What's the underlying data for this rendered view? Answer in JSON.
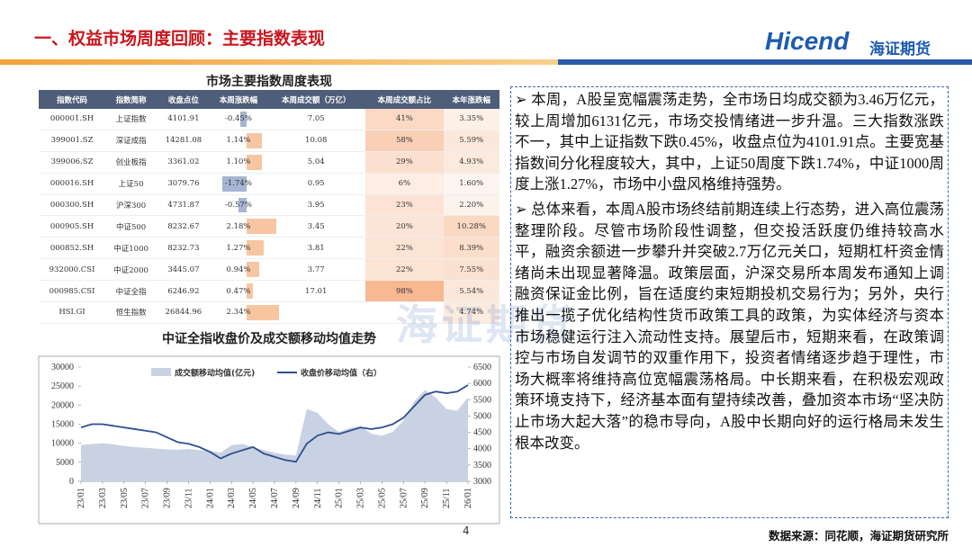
{
  "header": {
    "title": "一、权益市场周度回顾：主要指数表现",
    "logo": "Hicend",
    "logo_cn": "海证期货"
  },
  "table": {
    "title": "市场主要指数周度表现",
    "columns": [
      "指数代码",
      "指数简称",
      "收盘点位",
      "本周涨跌幅",
      "本周成交额（万亿）",
      "本周成交额占比",
      "本年涨跌幅"
    ],
    "rows": [
      [
        "000001.SH",
        "上证指数",
        "4101.91",
        "-0.45%",
        "7.05",
        "41%",
        "3.35%"
      ],
      [
        "399001.SZ",
        "深证成指",
        "14281.08",
        "1.14%",
        "10.08",
        "58%",
        "5.59%"
      ],
      [
        "399006.SZ",
        "创业板指",
        "3361.02",
        "1.10%",
        "5.04",
        "29%",
        "4.93%"
      ],
      [
        "000016.SH",
        "上证50",
        "3079.76",
        "-1.74%",
        "0.95",
        "6%",
        "1.60%"
      ],
      [
        "000300.SH",
        "沪深300",
        "4731.87",
        "-0.57%",
        "3.95",
        "23%",
        "2.20%"
      ],
      [
        "000905.SH",
        "中证500",
        "8232.67",
        "2.18%",
        "3.45",
        "20%",
        "10.28%"
      ],
      [
        "000852.SH",
        "中证1000",
        "8232.73",
        "1.27%",
        "3.81",
        "22%",
        "8.39%"
      ],
      [
        "932000.CSI",
        "中证2000",
        "3445.07",
        "0.94%",
        "3.77",
        "22%",
        "7.55%"
      ],
      [
        "000985.CSI",
        "中证全指",
        "6246.92",
        "0.47%",
        "17.01",
        "98%",
        "5.54%"
      ],
      [
        "HSI.GI",
        "恒生指数",
        "26844.96",
        "2.34%",
        null,
        null,
        "4.74%"
      ]
    ]
  },
  "chart_data": {
    "type": "area-line",
    "title": "中证全指收盘价及成交额移动均值走势",
    "categories": [
      "23/01",
      null,
      "23/03",
      null,
      "23/05",
      null,
      "23/07",
      null,
      "23/09",
      null,
      "23/11",
      null,
      "24/01",
      null,
      "24/03",
      null,
      "24/05",
      null,
      "24/07",
      null,
      "24/09",
      null,
      "24/11",
      null,
      "25/01",
      null,
      "25/03",
      null,
      "25/05",
      null,
      "25/07",
      null,
      "25/09",
      null,
      "25/11",
      null,
      "26/01"
    ],
    "series": [
      {
        "name": "成交额移动均值(亿元)",
        "style": "area",
        "color": "#c9d2e2",
        "values": [
          9500,
          9800,
          10000,
          9700,
          9300,
          9000,
          8800,
          8600,
          8400,
          8300,
          8500,
          8200,
          8000,
          7500,
          9500,
          9800,
          9000,
          8200,
          7500,
          7000,
          6800,
          19000,
          18000,
          15000,
          13000,
          14000,
          14500,
          12500,
          12000,
          13000,
          16000,
          21000,
          24000,
          22000,
          19000,
          18500,
          22000
        ]
      },
      {
        "name": "收盘价移动均值（右）",
        "style": "line",
        "axis": "y2",
        "color": "#2f4f8f",
        "values": [
          4650,
          4750,
          4750,
          4700,
          4650,
          4600,
          4550,
          4500,
          4350,
          4200,
          4150,
          4050,
          3900,
          3700,
          3850,
          3950,
          4050,
          3850,
          3750,
          3650,
          3600,
          4150,
          4400,
          4500,
          4450,
          4550,
          4650,
          4600,
          4650,
          4750,
          4950,
          5300,
          5650,
          5750,
          5700,
          5750,
          5950
        ]
      }
    ],
    "ylim": [
      0,
      30000
    ],
    "yticks": [
      0,
      5000,
      10000,
      15000,
      20000,
      25000,
      30000
    ],
    "y2lim": [
      3000,
      6500
    ],
    "y2ticks": [
      3000,
      3500,
      4000,
      4500,
      5000,
      5500,
      6000,
      6500
    ]
  },
  "text": {
    "paragraphs": [
      "本周，A股呈宽幅震荡走势，全市场日均成交额为3.46万亿元，较上周增加6131亿元，市场交投情绪进一步升温。三大指数涨跌不一，其中上证指数下跌0.45%，收盘点位为4101.91点。主要宽基指数间分化程度较大，其中，上证50周度下跌1.74%，中证1000周度上涨1.27%，市场中小盘风格维持强势。",
      "总体来看，本周A股市场终结前期连续上行态势，进入高位震荡整理阶段。尽管市场阶段性调整，但交投活跃度仍维持较高水平，融资余额进一步攀升并突破2.7万亿元关口，短期杠杆资金情绪尚未出现显著降温。政策层面，沪深交易所本周发布通知上调融资保证金比例，旨在适度约束短期投机交易行为；另外，央行推出一揽子优化结构性货币政策工具的政策，为实体经济与资本市场稳健运行注入流动性支持。展望后市，短期来看，在政策调控与市场自发调节的双重作用下，投资者情绪逐步趋于理性，市场大概率将维持高位宽幅震荡格局。中长期来看，在积极宏观政策环境支持下，经济基本面有望持续改善，叠加资本市场“坚决防止市场大起大落”的稳市导向，A股中长期向好的运行格局未发生根本改变。"
    ]
  },
  "watermark": "海证期货",
  "footer": {
    "page": "4",
    "source": "数据来源：同花顺，海证期货研究所"
  }
}
